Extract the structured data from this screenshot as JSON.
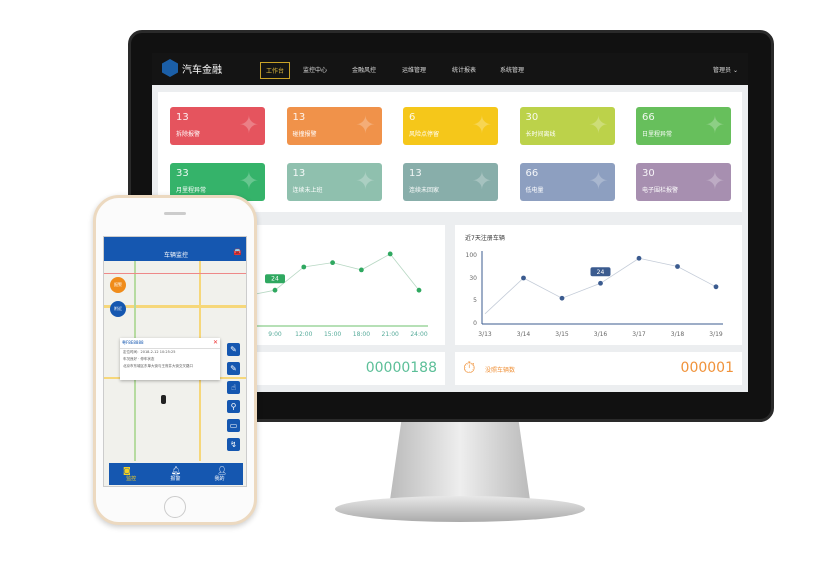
{
  "app": {
    "logo_text": "汽车金融",
    "user": "管理员"
  },
  "nav": [
    {
      "label": "工作台",
      "active": true
    },
    {
      "label": "监控中心"
    },
    {
      "label": "金融风控"
    },
    {
      "label": "运维管理"
    },
    {
      "label": "统计报表"
    },
    {
      "label": "系统管理"
    }
  ],
  "cards": [
    {
      "value": "13",
      "label": "拆除报警",
      "color": "#e5545e",
      "icon": "tools-icon"
    },
    {
      "value": "13",
      "label": "碰撞报警",
      "color": "#f0924a",
      "icon": "car-crash-icon"
    },
    {
      "value": "6",
      "label": "风险点停留",
      "color": "#f5c71a",
      "icon": "map-pin-icon"
    },
    {
      "value": "30",
      "label": "长时间离线",
      "color": "#bcd24a",
      "icon": "link-icon"
    },
    {
      "value": "66",
      "label": "日里程异常",
      "color": "#67bf5c",
      "icon": "gauge-icon"
    },
    {
      "value": "33",
      "label": "月里程异常",
      "color": "#35b36a",
      "icon": "speedometer-icon"
    },
    {
      "value": "13",
      "label": "连续未上班",
      "color": "#8fc0ae",
      "icon": "briefcase-icon"
    },
    {
      "value": "13",
      "label": "连续未回家",
      "color": "#88aeaa",
      "icon": "home-icon"
    },
    {
      "value": "66",
      "label": "低电量",
      "color": "#8d9fc0",
      "icon": "battery-icon"
    },
    {
      "value": "30",
      "label": "电子围栏报警",
      "color": "#a78fb0",
      "icon": "map-fence-icon"
    }
  ],
  "chart_data": [
    {
      "type": "line",
      "title": "",
      "x": [
        "9:00",
        "12:00",
        "15:00",
        "18:00",
        "21:00",
        "24:00"
      ],
      "values": [
        24,
        40,
        43,
        38,
        49,
        24
      ],
      "tooltip": "24",
      "color": "#2fa860"
    },
    {
      "type": "line",
      "title": "近7天注册车辆",
      "x": [
        "3/13",
        "3/14",
        "3/15",
        "3/16",
        "3/17",
        "3/18",
        "3/19"
      ],
      "values": [
        2,
        30,
        7,
        24,
        90,
        65,
        20
      ],
      "yticks": [
        "0",
        "5",
        "30",
        "100"
      ],
      "tooltip": "24",
      "color": "#3b5b8f"
    }
  ],
  "stats": [
    {
      "value": "00000188",
      "color": "#5cbf98"
    },
    {
      "label": "没照车辆数",
      "value": "000001",
      "color": "#f0923a"
    }
  ],
  "phone": {
    "title": "车辆监控",
    "popup_title": "粤F8E8888",
    "popup_lines": [
      "定位时间：2018-2-12 10:25:25",
      "车况良好 · 停车状态",
      "北京市东城区东单大街与王府井大街交叉路口"
    ],
    "float_buttons": [
      "报警",
      "附近"
    ],
    "tabs": [
      "监控",
      "报警",
      "我的"
    ]
  }
}
